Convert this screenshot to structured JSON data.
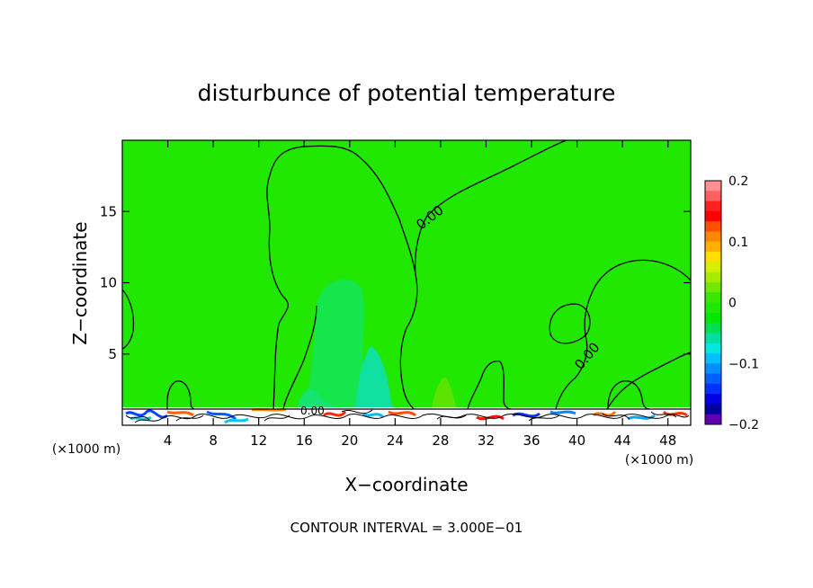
{
  "chart_data": {
    "type": "heatmap",
    "title": "disturbunce of potential temperature",
    "xlabel": "X−coordinate",
    "ylabel": "Z−coordinate",
    "x_unit_left": "(×1000 m)",
    "x_unit_right": "(×1000 m)",
    "xlim": [
      0,
      50
    ],
    "ylim": [
      0,
      20
    ],
    "xticks": [
      4,
      8,
      12,
      16,
      20,
      24,
      28,
      32,
      36,
      40,
      44,
      48
    ],
    "yticks": [
      5,
      10,
      15
    ],
    "colorbar": {
      "range": [
        -0.2,
        0.2
      ],
      "tick_labels": [
        "0.2",
        "0.1",
        "0",
        "−0.1",
        "−0.2"
      ],
      "tick_values": [
        0.2,
        0.1,
        0,
        -0.1,
        -0.2
      ]
    },
    "contour_labels": [
      "0.00",
      "0.00",
      "0.00"
    ],
    "background_value": 0,
    "footer": "CONTOUR INTERVAL = 3.000E−01"
  }
}
